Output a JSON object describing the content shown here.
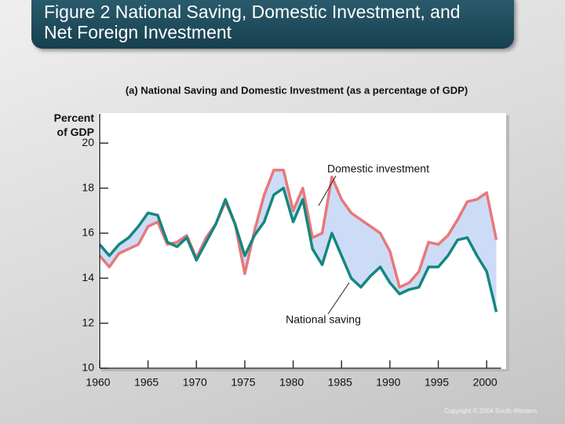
{
  "chart_data": {
    "type": "line",
    "title": "Figure 2 National Saving, Domestic Investment, and Net Foreign Investment",
    "subtitle": "(a) National Saving and Domestic Investment (as a percentage of GDP)",
    "ylabel": "Percent of GDP",
    "copyright": "Copyright © 2004 South-Western",
    "x": [
      1960,
      1961,
      1962,
      1963,
      1964,
      1965,
      1966,
      1967,
      1968,
      1969,
      1970,
      1971,
      1972,
      1973,
      1974,
      1975,
      1976,
      1977,
      1978,
      1979,
      1980,
      1981,
      1982,
      1983,
      1984,
      1985,
      1986,
      1987,
      1988,
      1989,
      1990,
      1991,
      1992,
      1993,
      1994,
      1995,
      1996,
      1997,
      1998,
      1999,
      2000,
      2001
    ],
    "series": [
      {
        "name": "Domestic investment",
        "color": "#e8787a",
        "values": [
          15.0,
          14.5,
          15.1,
          15.3,
          15.5,
          16.3,
          16.5,
          15.5,
          15.6,
          15.9,
          14.9,
          15.8,
          16.4,
          17.4,
          16.4,
          14.2,
          16.1,
          17.7,
          18.8,
          18.8,
          17.0,
          18.0,
          15.8,
          16.0,
          18.5,
          17.5,
          16.9,
          16.6,
          16.3,
          16.0,
          15.2,
          13.6,
          13.8,
          14.3,
          15.6,
          15.5,
          15.9,
          16.6,
          17.4,
          17.5,
          17.8,
          15.7
        ]
      },
      {
        "name": "National saving",
        "color": "#14877f",
        "values": [
          15.5,
          15.0,
          15.5,
          15.8,
          16.3,
          16.9,
          16.8,
          15.6,
          15.4,
          15.8,
          14.8,
          15.6,
          16.4,
          17.5,
          16.4,
          15.0,
          15.9,
          16.5,
          17.7,
          18.0,
          16.5,
          17.5,
          15.3,
          14.6,
          16.0,
          15.0,
          14.0,
          13.6,
          14.1,
          14.5,
          13.8,
          13.3,
          13.5,
          13.6,
          14.5,
          14.5,
          15.0,
          15.7,
          15.8,
          15.0,
          14.3,
          12.5
        ]
      }
    ],
    "fill_between": "#cddcf6",
    "xlim": [
      1960,
      2001
    ],
    "xticks": [
      1960,
      1965,
      1970,
      1975,
      1980,
      1985,
      1990,
      1995,
      2000
    ],
    "ylim": [
      10,
      21.3
    ],
    "yticks": [
      10,
      12,
      14,
      16,
      18,
      20
    ]
  }
}
